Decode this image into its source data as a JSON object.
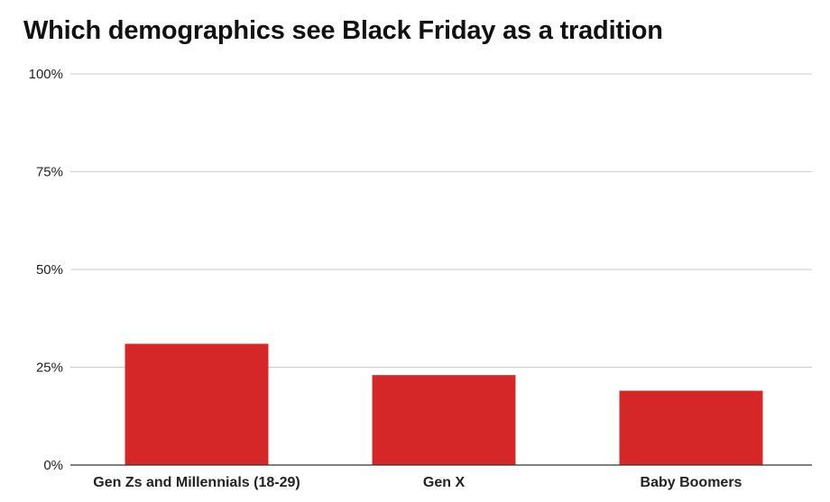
{
  "chart_data": {
    "type": "bar",
    "title": "Which demographics see Black Friday as a tradition",
    "xlabel": "",
    "ylabel": "",
    "categories": [
      "Gen Zs and Millennials (18-29)",
      "Gen X",
      "Baby Boomers"
    ],
    "values": [
      31,
      23,
      19
    ],
    "ylim": [
      0,
      100
    ],
    "yticks": [
      0,
      25,
      50,
      75,
      100
    ],
    "ytick_labels": [
      "0%",
      "25%",
      "50%",
      "75%",
      "100%"
    ],
    "grid": true,
    "legend": "none",
    "colors": {
      "bar": "#d62728",
      "grid": "#cccccc",
      "axis": "#333333"
    }
  }
}
